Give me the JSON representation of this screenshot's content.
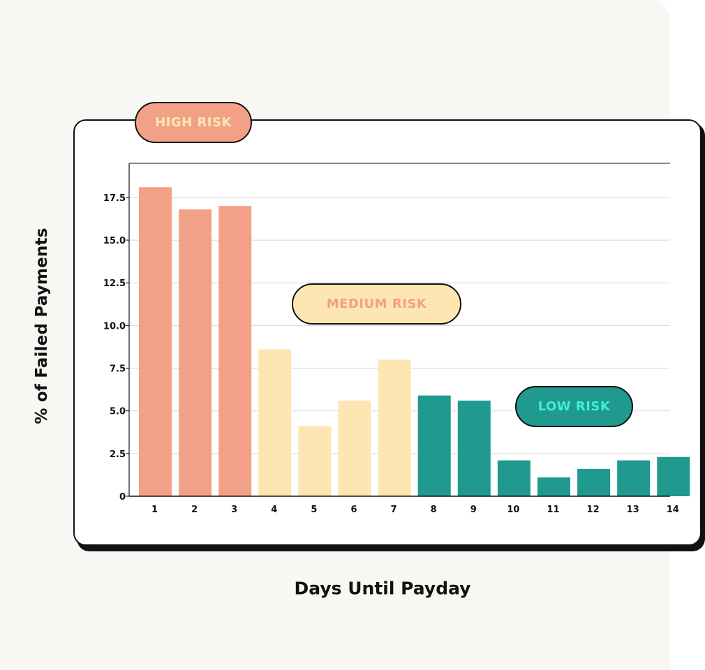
{
  "colors": {
    "high": "#f2a187",
    "medium": "#fde6b2",
    "low": "#20998f",
    "high_text": "#fde6b2",
    "medium_text": "#f2a187",
    "low_text": "#3ff0d6",
    "axis": "#111111",
    "grid": "#d9d9d9"
  },
  "risk_labels": {
    "high": "HIGH RISK",
    "medium": "MEDIUM RISK",
    "low": "LOW RISK"
  },
  "chart_data": {
    "type": "bar",
    "title": "",
    "xlabel": "Days Until Payday",
    "ylabel": "% of Failed Payments",
    "ylim": [
      0,
      19.5
    ],
    "yticks": [
      {
        "value": 0,
        "label": "0"
      },
      {
        "value": 2.5,
        "label": "2.5"
      },
      {
        "value": 5,
        "label": "5.0"
      },
      {
        "value": 7.5,
        "label": "7.5"
      },
      {
        "value": 10,
        "label": "10.0"
      },
      {
        "value": 12.5,
        "label": "12.5"
      },
      {
        "value": 15,
        "label": "15.0"
      },
      {
        "value": 17.5,
        "label": "17.5"
      }
    ],
    "grid": true,
    "categories": [
      "1",
      "2",
      "3",
      "4",
      "5",
      "6",
      "7",
      "8",
      "9",
      "10",
      "11",
      "12",
      "13",
      "14"
    ],
    "values": [
      18.1,
      16.8,
      17.0,
      8.6,
      4.1,
      5.6,
      8.0,
      5.9,
      5.6,
      2.1,
      1.1,
      1.6,
      2.1,
      2.3
    ],
    "risk": [
      "high",
      "high",
      "high",
      "medium",
      "medium",
      "medium",
      "medium",
      "low",
      "low",
      "low",
      "low",
      "low",
      "low",
      "low"
    ]
  }
}
